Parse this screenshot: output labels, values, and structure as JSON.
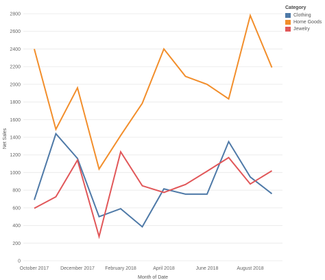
{
  "chart_data": {
    "type": "line",
    "title": "",
    "xlabel": "Month of Date",
    "ylabel": "Net Sales",
    "x": [
      "Oct 2017",
      "Nov 2017",
      "Dec 2017",
      "Jan 2018",
      "Feb 2018",
      "Mar 2018",
      "Apr 2018",
      "May 2018",
      "Jun 2018",
      "Jul 2018",
      "Aug 2018",
      "Sep 2018"
    ],
    "x_tick_labels": [
      "October 2017",
      "December 2017",
      "February 2018",
      "April 2018",
      "June 2018",
      "August 2018"
    ],
    "y_ticks": [
      0,
      200,
      400,
      600,
      800,
      1000,
      1200,
      1400,
      1600,
      1800,
      2000,
      2200,
      2400,
      2600,
      2800
    ],
    "ylim": [
      0,
      2800
    ],
    "grid": "horizontal",
    "legend_position": "top-right",
    "legend_title": "Category",
    "series": [
      {
        "name": "Clothing",
        "color": "#4e79a7",
        "values": [
          690,
          1440,
          1160,
          500,
          590,
          385,
          815,
          755,
          755,
          1350,
          950,
          760
        ]
      },
      {
        "name": "Home Goods",
        "color": "#f28e2b",
        "values": [
          2400,
          1490,
          1960,
          1040,
          1420,
          1785,
          2400,
          2090,
          2000,
          1835,
          2780,
          2190
        ]
      },
      {
        "name": "Jewelry",
        "color": "#e15759",
        "values": [
          595,
          725,
          1140,
          275,
          1235,
          850,
          775,
          865,
          1015,
          1170,
          870,
          1020
        ]
      }
    ]
  }
}
